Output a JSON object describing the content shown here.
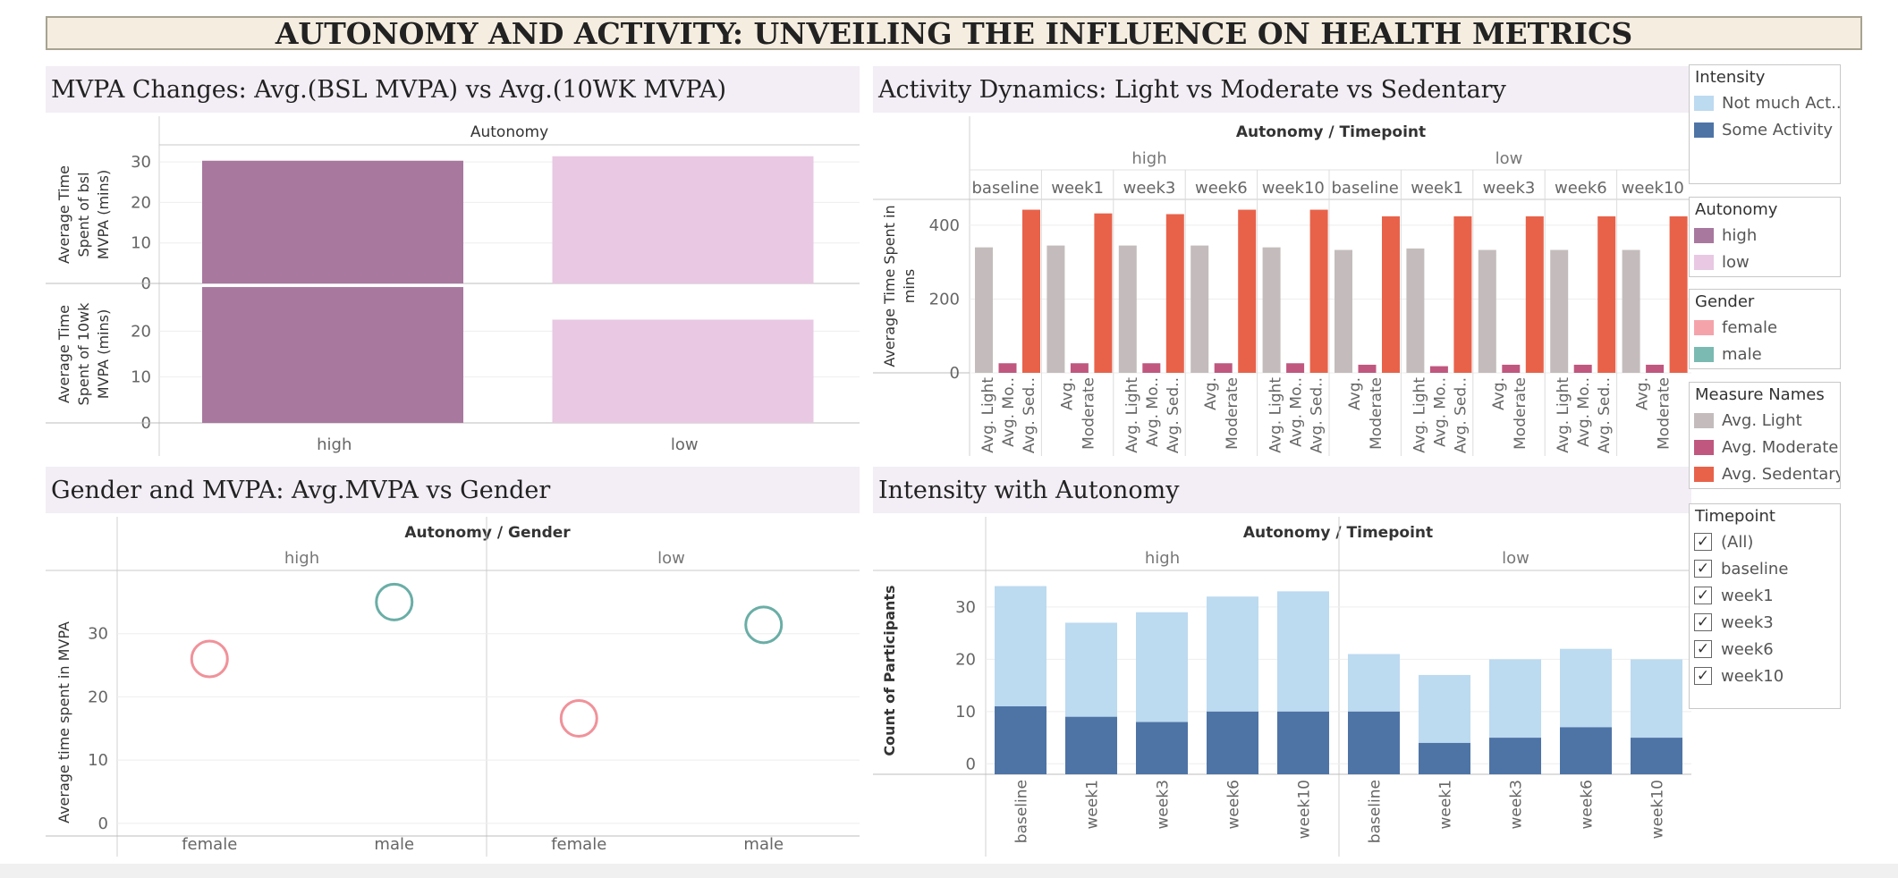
{
  "dashboard_title": "AUTONOMY AND ACTIVITY: UNVEILING THE INFLUENCE ON HEALTH METRICS",
  "panel_titles": {
    "mvpa": "MVPA Changes: Avg.(BSL MVPA) vs Avg.(10WK MVPA)",
    "activity": "Activity Dynamics: Light vs Moderate vs Sedentary",
    "gender": "Gender and MVPA: Avg.MVPA vs Gender",
    "intensity": "Intensity with Autonomy"
  },
  "colors": {
    "autonomy_high": "#a8789f",
    "autonomy_low": "#e8c8e3",
    "female": "#f0929a",
    "male": "#6aaea6",
    "light": "#c4bcbc",
    "moderate": "#c0577f",
    "sedentary": "#e8624a",
    "not_much": "#bcdaf0",
    "some": "#4e74a6"
  },
  "legends": {
    "intensity": {
      "title": "Intensity",
      "items": [
        {
          "label": "Not much Act...",
          "color": "#bcdaf0"
        },
        {
          "label": "Some Activity",
          "color": "#4e74a6"
        }
      ]
    },
    "autonomy": {
      "title": "Autonomy",
      "items": [
        {
          "label": "high",
          "color": "#a8789f"
        },
        {
          "label": "low",
          "color": "#e8c8e3"
        }
      ]
    },
    "gender": {
      "title": "Gender",
      "items": [
        {
          "label": "female",
          "color": "#f5a3ab"
        },
        {
          "label": "male",
          "color": "#7abab2"
        }
      ]
    },
    "measures": {
      "title": "Measure Names",
      "items": [
        {
          "label": "Avg. Light",
          "color": "#c4bcbc"
        },
        {
          "label": "Avg. Moderate",
          "color": "#c0577f"
        },
        {
          "label": "Avg. Sedentary",
          "color": "#e8624a"
        }
      ]
    },
    "timepoint": {
      "title": "Timepoint",
      "items": [
        "(All)",
        "baseline",
        "week1",
        "week3",
        "week6",
        "week10"
      ]
    }
  },
  "chart_data": [
    {
      "id": "mvpa_changes",
      "type": "bar",
      "header": "Autonomy",
      "categories": [
        "high",
        "low"
      ],
      "rows": [
        {
          "ylabel": [
            "Average Time",
            "Spent of bsl",
            "MVPA (mins)"
          ],
          "ylim": [
            0,
            34
          ],
          "ticks": [
            0,
            10,
            20,
            30
          ],
          "values": [
            30.3,
            31.4
          ]
        },
        {
          "ylabel": [
            "Average Time",
            "Spent of 10wk",
            "MVPA (mins)"
          ],
          "ylim": [
            0,
            30
          ],
          "ticks": [
            0,
            10,
            20
          ],
          "values": [
            29.6,
            22.5
          ]
        }
      ]
    },
    {
      "id": "activity_dynamics",
      "type": "bar",
      "header": "Autonomy / Timepoint",
      "groups": [
        "high",
        "low"
      ],
      "timepoints": [
        "baseline",
        "week1",
        "week3",
        "week6",
        "week10"
      ],
      "ylabel": [
        "Average Time Spent in",
        "mins"
      ],
      "ylim": [
        0,
        470
      ],
      "ticks": [
        0,
        200,
        400
      ],
      "columns": [
        {
          "group": "high",
          "timepoint": "baseline",
          "light": 340,
          "moderate": 26,
          "sedentary": 442,
          "labels": [
            "Avg. Light",
            "Avg. Mo..",
            "Avg. Sed.."
          ]
        },
        {
          "group": "high",
          "timepoint": "week1",
          "light": 345,
          "moderate": 26,
          "sedentary": 432,
          "labels": [
            "Avg.",
            "Moderate"
          ]
        },
        {
          "group": "high",
          "timepoint": "week3",
          "light": 345,
          "moderate": 26,
          "sedentary": 430,
          "labels": [
            "Avg. Light",
            "Avg. Mo..",
            "Avg. Sed.."
          ]
        },
        {
          "group": "high",
          "timepoint": "week6",
          "light": 345,
          "moderate": 26,
          "sedentary": 442,
          "labels": [
            "Avg.",
            "Moderate"
          ]
        },
        {
          "group": "high",
          "timepoint": "week10",
          "light": 340,
          "moderate": 26,
          "sedentary": 442,
          "labels": [
            "Avg. Light",
            "Avg. Mo..",
            "Avg. Sed.."
          ]
        },
        {
          "group": "low",
          "timepoint": "baseline",
          "light": 333,
          "moderate": 22,
          "sedentary": 424,
          "labels": [
            "Avg.",
            "Moderate"
          ]
        },
        {
          "group": "low",
          "timepoint": "week1",
          "light": 337,
          "moderate": 18,
          "sedentary": 424,
          "labels": [
            "Avg. Light",
            "Avg. Mo..",
            "Avg. Sed.."
          ]
        },
        {
          "group": "low",
          "timepoint": "week3",
          "light": 333,
          "moderate": 22,
          "sedentary": 424,
          "labels": [
            "Avg.",
            "Moderate"
          ]
        },
        {
          "group": "low",
          "timepoint": "week6",
          "light": 333,
          "moderate": 22,
          "sedentary": 424,
          "labels": [
            "Avg. Light",
            "Avg. Mo..",
            "Avg. Sed.."
          ]
        },
        {
          "group": "low",
          "timepoint": "week10",
          "light": 333,
          "moderate": 22,
          "sedentary": 424,
          "labels": [
            "Avg.",
            "Moderate"
          ]
        }
      ]
    },
    {
      "id": "gender_mvpa",
      "type": "scatter",
      "header": "Autonomy / Gender",
      "groups": [
        "high",
        "low"
      ],
      "categories": [
        "female",
        "male"
      ],
      "ylabel": "Average time spent in MVPA",
      "ylim": [
        -2,
        40
      ],
      "ticks": [
        0,
        10,
        20,
        30
      ],
      "points": [
        {
          "group": "high",
          "gender": "female",
          "value": 26.0
        },
        {
          "group": "high",
          "gender": "male",
          "value": 35.0
        },
        {
          "group": "low",
          "gender": "female",
          "value": 16.6
        },
        {
          "group": "low",
          "gender": "male",
          "value": 31.4
        }
      ]
    },
    {
      "id": "intensity_autonomy",
      "type": "bar",
      "header": "Autonomy / Timepoint",
      "groups": [
        "high",
        "low"
      ],
      "categories": [
        "baseline",
        "week1",
        "week3",
        "week6",
        "week10"
      ],
      "ylabel": "Count of Participants",
      "ylim": [
        -2,
        37
      ],
      "ticks": [
        0,
        10,
        20,
        30
      ],
      "series": [
        {
          "name": "Some Activity",
          "high": [
            11,
            9,
            8,
            10,
            10
          ],
          "low": [
            10,
            4,
            5,
            7,
            5
          ]
        },
        {
          "name": "Not much Act...",
          "high": [
            23,
            18,
            21,
            22,
            23
          ],
          "low": [
            11,
            13,
            15,
            15,
            15
          ]
        }
      ]
    }
  ]
}
